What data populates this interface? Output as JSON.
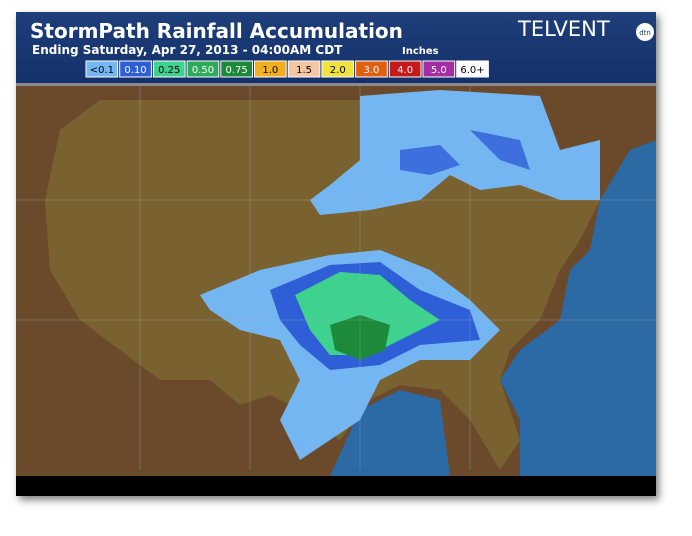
{
  "header": {
    "title": "StormPath Rainfall Accumulation",
    "subtitle": "Ending Saturday, Apr 27, 2013 - 04:00AM CDT",
    "units": "Inches"
  },
  "brand": {
    "name": "TELVENT",
    "badge": "dtn"
  },
  "legend": {
    "items": [
      {
        "label": "<0.1",
        "color": "#74b6f2"
      },
      {
        "label": "0.10",
        "color": "#2f5fd6"
      },
      {
        "label": "0.25",
        "color": "#3fd18e"
      },
      {
        "label": "0.50",
        "color": "#2dab5a"
      },
      {
        "label": "0.75",
        "color": "#1d8a3a"
      },
      {
        "label": "1.0",
        "color": "#f0b020"
      },
      {
        "label": "1.5",
        "color": "#f5c6a2"
      },
      {
        "label": "2.0",
        "color": "#f2e23e"
      },
      {
        "label": "3.0",
        "color": "#e06010"
      },
      {
        "label": "4.0",
        "color": "#c41a1a"
      },
      {
        "label": "5.0",
        "color": "#a22ea2"
      },
      {
        "label": "6.0+",
        "color": "#ffffff"
      }
    ]
  }
}
